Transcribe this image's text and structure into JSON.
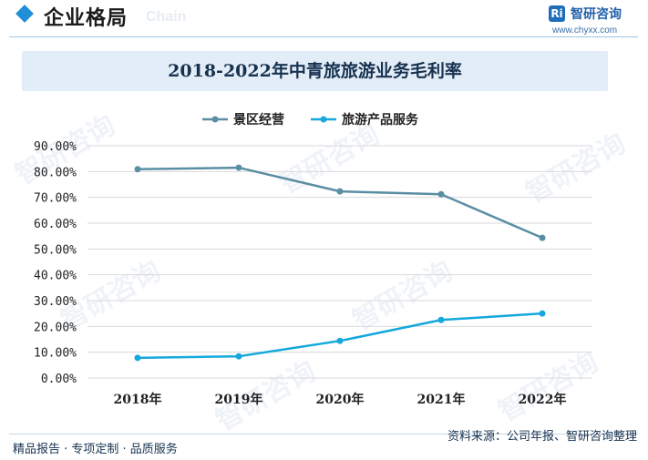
{
  "header": {
    "section_title": "企业格局",
    "section_ghost": "Chain",
    "logo_text": "智研咨询",
    "logo_url": "www.chyxx.com"
  },
  "footer": {
    "tagline": "精品报告 · 专项定制 · 品质服务",
    "source": "资料来源：公司年报、智研咨询整理"
  },
  "watermark_text": "智研咨询",
  "colors": {
    "series1": "#5a8ea3",
    "series2": "#14a8dc",
    "accent": "#1f8fd8"
  },
  "chart_data": {
    "type": "line",
    "title": "2018-2022年中青旅旅游业务毛利率",
    "categories": [
      "2018年",
      "2019年",
      "2020年",
      "2021年",
      "2022年"
    ],
    "series": [
      {
        "name": "景区经营",
        "values": [
          80.9,
          81.5,
          72.3,
          71.2,
          54.3
        ]
      },
      {
        "name": "旅游产品服务",
        "values": [
          7.8,
          8.4,
          14.4,
          22.5,
          25.0
        ]
      }
    ],
    "ylim": [
      0,
      90
    ],
    "yticks": [
      "0.00%",
      "10.00%",
      "20.00%",
      "30.00%",
      "40.00%",
      "50.00%",
      "60.00%",
      "70.00%",
      "80.00%",
      "90.00%"
    ],
    "grid": true,
    "legend": "top-center",
    "xlabel": "",
    "ylabel": ""
  }
}
